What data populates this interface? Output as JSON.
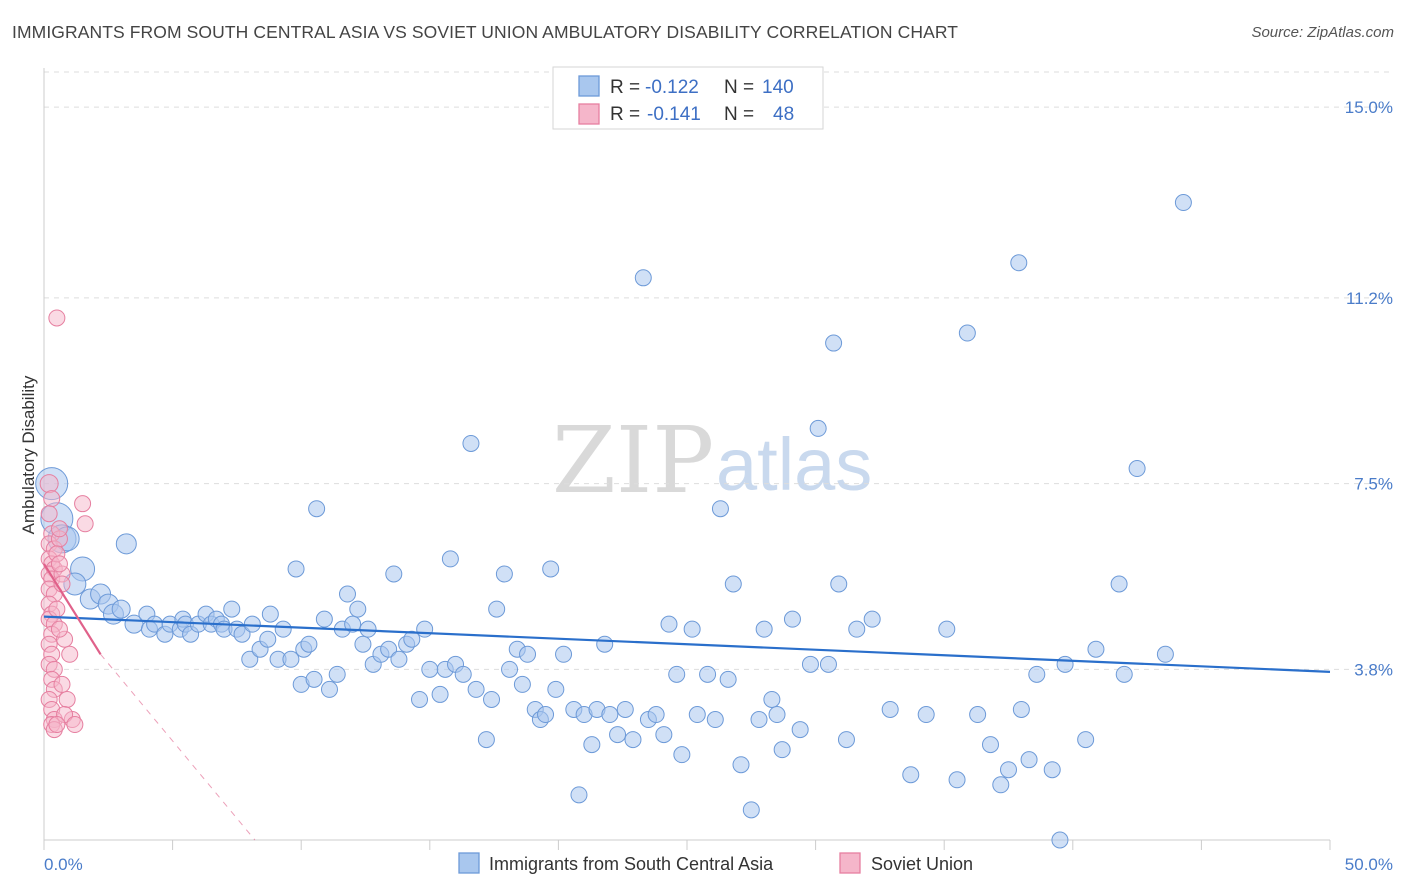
{
  "title": "IMMIGRANTS FROM SOUTH CENTRAL ASIA VS SOVIET UNION AMBULATORY DISABILITY CORRELATION CHART",
  "source": "Source: ZipAtlas.com",
  "watermark": {
    "zip": "ZIP",
    "atlas": "atlas"
  },
  "colors": {
    "blue_fill": "#a9c7ee",
    "blue_stroke": "#6d9ad8",
    "blue_line": "#2a6fcb",
    "pink_fill": "#f5b6ca",
    "pink_stroke": "#e67fa0",
    "pink_line": "#e0618a",
    "grid": "#dddddd",
    "axis_text": "#4a7cc9"
  },
  "legend": {
    "rows": [
      {
        "r_label": "R = ",
        "r_value": "-0.122",
        "n_label": "N = ",
        "n_value": "140"
      },
      {
        "r_label": "R = ",
        "r_value": "-0.141",
        "n_label": "N = ",
        "n_value": "48"
      }
    ]
  },
  "chart_data": {
    "type": "scatter",
    "ylabel": "Ambulatory Disability",
    "xlim": [
      0,
      50
    ],
    "ylim": [
      0.4,
      15.7
    ],
    "x_tick_labels": [
      {
        "value": 0,
        "label": "0.0%"
      },
      {
        "value": 50,
        "label": "50.0%"
      }
    ],
    "y_ticks": [
      {
        "value": 3.8,
        "label": "3.8%"
      },
      {
        "value": 7.5,
        "label": "7.5%"
      },
      {
        "value": 11.2,
        "label": "11.2%"
      },
      {
        "value": 15.0,
        "label": "15.0%"
      }
    ],
    "grid": "horizontal dashed",
    "legend_position": "top-center",
    "series": [
      {
        "name": "Immigrants from South Central Asia",
        "trend": {
          "x": [
            0,
            50
          ],
          "y": [
            4.85,
            3.75
          ]
        },
        "points": [
          [
            0.3,
            7.5,
            16
          ],
          [
            0.5,
            6.8,
            16
          ],
          [
            0.7,
            6.4,
            14
          ],
          [
            0.9,
            6.4,
            12
          ],
          [
            1.5,
            5.8,
            12
          ],
          [
            1.2,
            5.5,
            11
          ],
          [
            1.8,
            5.2,
            10
          ],
          [
            2.2,
            5.3,
            10
          ],
          [
            2.5,
            5.1,
            10
          ],
          [
            3.2,
            6.3,
            10
          ],
          [
            2.7,
            4.9,
            10
          ],
          [
            3.0,
            5.0,
            9
          ],
          [
            3.5,
            4.7,
            9
          ],
          [
            4.0,
            4.9,
            8
          ],
          [
            4.1,
            4.6,
            8
          ],
          [
            4.3,
            4.7,
            8
          ],
          [
            4.7,
            4.5,
            8
          ],
          [
            4.9,
            4.7,
            8
          ],
          [
            5.3,
            4.6,
            8
          ],
          [
            5.4,
            4.8,
            8
          ],
          [
            5.5,
            4.7,
            8
          ],
          [
            5.7,
            4.5,
            8
          ],
          [
            6.0,
            4.7,
            8
          ],
          [
            6.3,
            4.9,
            8
          ],
          [
            6.5,
            4.7,
            8
          ],
          [
            6.7,
            4.8,
            8
          ],
          [
            6.9,
            4.7,
            8
          ],
          [
            7.0,
            4.6,
            8
          ],
          [
            7.3,
            5.0,
            8
          ],
          [
            7.5,
            4.6,
            8
          ],
          [
            7.7,
            4.5,
            8
          ],
          [
            8.0,
            4.0,
            8
          ],
          [
            8.1,
            4.7,
            8
          ],
          [
            8.4,
            4.2,
            8
          ],
          [
            8.7,
            4.4,
            8
          ],
          [
            8.8,
            4.9,
            8
          ],
          [
            9.1,
            4.0,
            8
          ],
          [
            9.3,
            4.6,
            8
          ],
          [
            9.6,
            4.0,
            8
          ],
          [
            9.8,
            5.8,
            8
          ],
          [
            10.0,
            3.5,
            8
          ],
          [
            10.1,
            4.2,
            8
          ],
          [
            10.3,
            4.3,
            8
          ],
          [
            10.5,
            3.6,
            8
          ],
          [
            10.6,
            7.0,
            8
          ],
          [
            10.9,
            4.8,
            8
          ],
          [
            11.1,
            3.4,
            8
          ],
          [
            11.4,
            3.7,
            8
          ],
          [
            11.6,
            4.6,
            8
          ],
          [
            11.8,
            5.3,
            8
          ],
          [
            12.0,
            4.7,
            8
          ],
          [
            12.2,
            5.0,
            8
          ],
          [
            12.4,
            4.3,
            8
          ],
          [
            12.6,
            4.6,
            8
          ],
          [
            12.8,
            3.9,
            8
          ],
          [
            13.1,
            4.1,
            8
          ],
          [
            13.4,
            4.2,
            8
          ],
          [
            13.6,
            5.7,
            8
          ],
          [
            13.8,
            4.0,
            8
          ],
          [
            14.1,
            4.3,
            8
          ],
          [
            14.3,
            4.4,
            8
          ],
          [
            14.6,
            3.2,
            8
          ],
          [
            14.8,
            4.6,
            8
          ],
          [
            15.0,
            3.8,
            8
          ],
          [
            15.4,
            3.3,
            8
          ],
          [
            15.6,
            3.8,
            8
          ],
          [
            15.8,
            6.0,
            8
          ],
          [
            16.0,
            3.9,
            8
          ],
          [
            16.3,
            3.7,
            8
          ],
          [
            16.6,
            8.3,
            8
          ],
          [
            16.8,
            3.4,
            8
          ],
          [
            17.2,
            2.4,
            8
          ],
          [
            17.4,
            3.2,
            8
          ],
          [
            17.6,
            5.0,
            8
          ],
          [
            17.9,
            5.7,
            8
          ],
          [
            18.1,
            3.8,
            8
          ],
          [
            18.4,
            4.2,
            8
          ],
          [
            18.6,
            3.5,
            8
          ],
          [
            18.8,
            4.1,
            8
          ],
          [
            19.1,
            3.0,
            8
          ],
          [
            19.3,
            2.8,
            8
          ],
          [
            19.5,
            2.9,
            8
          ],
          [
            19.7,
            5.8,
            8
          ],
          [
            19.9,
            3.4,
            8
          ],
          [
            20.2,
            4.1,
            8
          ],
          [
            20.6,
            3.0,
            8
          ],
          [
            20.8,
            1.3,
            8
          ],
          [
            21.0,
            2.9,
            8
          ],
          [
            21.3,
            2.3,
            8
          ],
          [
            21.5,
            3.0,
            8
          ],
          [
            21.8,
            4.3,
            8
          ],
          [
            22.0,
            2.9,
            8
          ],
          [
            22.3,
            2.5,
            8
          ],
          [
            22.6,
            3.0,
            8
          ],
          [
            22.9,
            2.4,
            8
          ],
          [
            23.3,
            11.6,
            8
          ],
          [
            23.5,
            2.8,
            8
          ],
          [
            23.8,
            2.9,
            8
          ],
          [
            24.1,
            2.5,
            8
          ],
          [
            24.3,
            4.7,
            8
          ],
          [
            24.6,
            3.7,
            8
          ],
          [
            24.8,
            2.1,
            8
          ],
          [
            25.2,
            4.6,
            8
          ],
          [
            25.4,
            2.9,
            8
          ],
          [
            25.8,
            3.7,
            8
          ],
          [
            26.1,
            2.8,
            8
          ],
          [
            26.3,
            7.0,
            8
          ],
          [
            26.6,
            3.6,
            8
          ],
          [
            26.8,
            5.5,
            8
          ],
          [
            27.1,
            1.9,
            8
          ],
          [
            27.5,
            1.0,
            8
          ],
          [
            27.8,
            2.8,
            8
          ],
          [
            28.0,
            4.6,
            8
          ],
          [
            28.3,
            3.2,
            8
          ],
          [
            28.5,
            2.9,
            8
          ],
          [
            28.7,
            2.2,
            8
          ],
          [
            29.1,
            4.8,
            8
          ],
          [
            29.4,
            2.6,
            8
          ],
          [
            30.5,
            3.9,
            8
          ],
          [
            31.2,
            2.4,
            8
          ],
          [
            30.9,
            5.5,
            8
          ],
          [
            30.1,
            8.6,
            8
          ],
          [
            30.7,
            10.3,
            8
          ],
          [
            31.6,
            4.6,
            8
          ],
          [
            32.2,
            4.8,
            8
          ],
          [
            32.9,
            3.0,
            8
          ],
          [
            33.7,
            1.7,
            8
          ],
          [
            34.3,
            2.9,
            8
          ],
          [
            35.1,
            4.6,
            8
          ],
          [
            35.5,
            1.6,
            8
          ],
          [
            36.3,
            2.9,
            8
          ],
          [
            35.9,
            10.5,
            8
          ],
          [
            37.2,
            1.5,
            8
          ],
          [
            37.5,
            1.8,
            8
          ],
          [
            37.9,
            11.9,
            8
          ],
          [
            38.3,
            2.0,
            8
          ],
          [
            38.6,
            3.7,
            8
          ],
          [
            39.2,
            1.8,
            8
          ],
          [
            39.7,
            3.9,
            8
          ],
          [
            40.5,
            2.4,
            8
          ],
          [
            41.8,
            5.5,
            8
          ],
          [
            42.5,
            7.8,
            8
          ],
          [
            44.3,
            13.1,
            8
          ],
          [
            43.6,
            4.1,
            8
          ],
          [
            42.0,
            3.7,
            8
          ],
          [
            40.9,
            4.2,
            8
          ],
          [
            39.5,
            0.4,
            8
          ],
          [
            38.0,
            3.0,
            8
          ],
          [
            36.8,
            2.3,
            8
          ],
          [
            29.8,
            3.9,
            8
          ]
        ]
      },
      {
        "name": "Soviet Union",
        "trend": {
          "x": [
            0,
            2.2
          ],
          "y": [
            5.9,
            4.1
          ],
          "dash_extend_to": [
            8.2,
            0.4
          ]
        },
        "points": [
          [
            0.2,
            7.5,
            9
          ],
          [
            0.3,
            7.2,
            8
          ],
          [
            0.2,
            6.9,
            8
          ],
          [
            0.3,
            6.5,
            8
          ],
          [
            0.2,
            6.3,
            8
          ],
          [
            0.4,
            6.2,
            8
          ],
          [
            0.2,
            6.0,
            8
          ],
          [
            0.3,
            5.9,
            8
          ],
          [
            0.4,
            5.8,
            8
          ],
          [
            0.2,
            5.7,
            8
          ],
          [
            0.3,
            5.6,
            8
          ],
          [
            0.2,
            5.4,
            8
          ],
          [
            0.4,
            5.3,
            8
          ],
          [
            0.2,
            5.1,
            8
          ],
          [
            0.3,
            4.9,
            8
          ],
          [
            0.2,
            4.8,
            8
          ],
          [
            0.4,
            4.7,
            8
          ],
          [
            0.3,
            4.5,
            8
          ],
          [
            0.2,
            4.3,
            8
          ],
          [
            0.3,
            4.1,
            8
          ],
          [
            0.2,
            3.9,
            8
          ],
          [
            0.4,
            3.8,
            8
          ],
          [
            0.3,
            3.6,
            8
          ],
          [
            0.4,
            3.4,
            8
          ],
          [
            0.2,
            3.2,
            8
          ],
          [
            0.3,
            3.0,
            8
          ],
          [
            0.4,
            2.8,
            8
          ],
          [
            0.3,
            2.7,
            8
          ],
          [
            0.4,
            2.6,
            8
          ],
          [
            0.5,
            10.8,
            8
          ],
          [
            0.6,
            6.4,
            8
          ],
          [
            0.7,
            5.7,
            8
          ],
          [
            0.8,
            4.4,
            8
          ],
          [
            0.9,
            3.2,
            8
          ],
          [
            1.0,
            4.1,
            8
          ],
          [
            1.1,
            2.8,
            8
          ],
          [
            1.5,
            7.1,
            8
          ],
          [
            1.6,
            6.7,
            8
          ],
          [
            0.6,
            6.6,
            8
          ],
          [
            0.5,
            6.1,
            8
          ],
          [
            0.6,
            5.9,
            8
          ],
          [
            0.7,
            5.5,
            8
          ],
          [
            0.5,
            5.0,
            8
          ],
          [
            0.6,
            4.6,
            8
          ],
          [
            0.7,
            3.5,
            8
          ],
          [
            0.8,
            2.9,
            8
          ],
          [
            0.5,
            2.7,
            8
          ],
          [
            1.2,
            2.7,
            8
          ]
        ]
      }
    ]
  },
  "bottom_legend": [
    "Immigrants from South Central Asia",
    "Soviet Union"
  ]
}
